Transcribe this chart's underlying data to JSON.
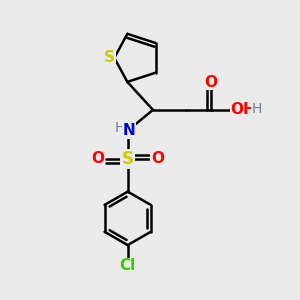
{
  "background_color": "#ebebeb",
  "bond_color": "#000000",
  "S_color": "#cccc00",
  "N_color": "#0000cc",
  "O_color": "#ff0000",
  "Cl_color": "#33cc00",
  "H_color": "#708090",
  "figsize": [
    3.0,
    3.0
  ],
  "dpi": 100,
  "xlim": [
    0,
    10
  ],
  "ylim": [
    0,
    10
  ]
}
